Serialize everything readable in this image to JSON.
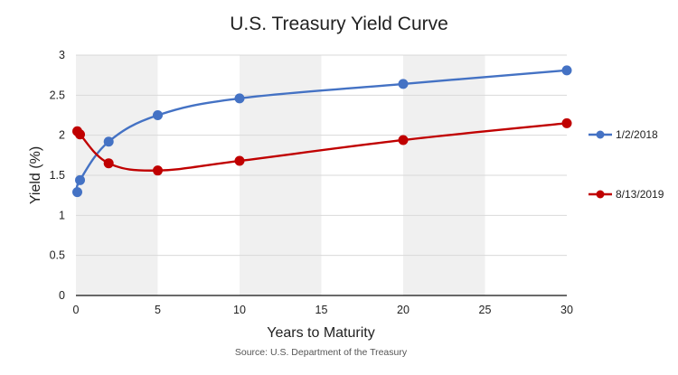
{
  "chart_data": {
    "type": "line",
    "title": "U.S. Treasury Yield Curve",
    "xlabel": "Years to Maturity",
    "ylabel": "Yield (%)",
    "source": "Source: U.S. Department of the Treasury",
    "xlim": [
      0,
      30
    ],
    "ylim": [
      0,
      3
    ],
    "x_ticks": [
      0,
      5,
      10,
      15,
      20,
      25,
      30
    ],
    "y_ticks": [
      0,
      0.5,
      1,
      1.5,
      2,
      2.5,
      3
    ],
    "x_tick_labels": [
      "0",
      "5",
      "10",
      "15",
      "20",
      "25",
      "30"
    ],
    "y_tick_labels": [
      "0",
      "0.5",
      "1",
      "1.5",
      "2",
      "2.5",
      "3"
    ],
    "shaded_bands": [
      [
        0,
        5
      ],
      [
        10,
        15
      ],
      [
        20,
        25
      ]
    ],
    "grid": true,
    "legend_position": "right",
    "series": [
      {
        "name": "1/2/2018",
        "color": "#4472C4",
        "x": [
          0.083,
          0.25,
          2,
          5,
          10,
          20,
          30
        ],
        "y": [
          1.29,
          1.44,
          1.92,
          2.25,
          2.46,
          2.64,
          2.81
        ]
      },
      {
        "name": "8/13/2019",
        "color": "#C00000",
        "x": [
          0.083,
          0.25,
          2,
          5,
          10,
          20,
          30
        ],
        "y": [
          2.05,
          2.01,
          1.65,
          1.56,
          1.68,
          1.94,
          2.15
        ]
      }
    ]
  }
}
